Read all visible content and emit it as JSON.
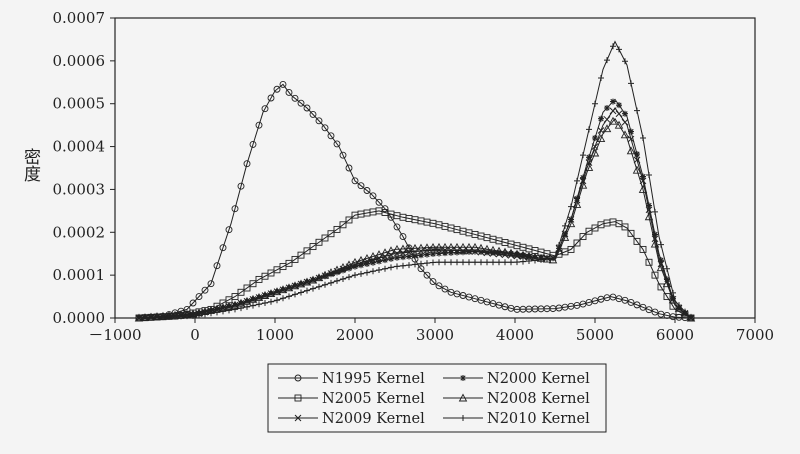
{
  "chart_data": {
    "type": "line",
    "title": "",
    "xlabel": "",
    "ylabel": "密度",
    "xlim": [
      -1000,
      7000
    ],
    "ylim": [
      0,
      0.0007
    ],
    "x_ticks": [
      -1000,
      0,
      1000,
      2000,
      3000,
      4000,
      5000,
      6000,
      7000
    ],
    "x_tick_labels": [
      "－1000",
      "0",
      "1000",
      "2000",
      "3000",
      "4000",
      "5000",
      "6000",
      "7000"
    ],
    "y_ticks": [
      0,
      0.0001,
      0.0002,
      0.0003,
      0.0004,
      0.0005,
      0.0006,
      0.0007
    ],
    "y_tick_labels": [
      "0.0000",
      "0.0001",
      "0.0002",
      "0.0003",
      "0.0004",
      "0.0005",
      "0.0006",
      "0.0007"
    ],
    "grid": false,
    "legend_position": "bottom",
    "colors": {
      "line": "#222222",
      "background": "#f4f4f4"
    },
    "series": [
      {
        "name": "N1995 Kernel",
        "marker": "circle",
        "points": [
          [
            -700,
            0.0
          ],
          [
            -400,
            4e-06
          ],
          [
            -100,
            2e-05
          ],
          [
            200,
            8e-05
          ],
          [
            450,
            0.00022
          ],
          [
            650,
            0.00036
          ],
          [
            850,
            0.00048
          ],
          [
            1000,
            0.00053
          ],
          [
            1100,
            0.000545
          ],
          [
            1200,
            0.00052
          ],
          [
            1400,
            0.00049
          ],
          [
            1600,
            0.00045
          ],
          [
            1800,
            0.0004
          ],
          [
            1900,
            0.00036
          ],
          [
            2000,
            0.00032
          ],
          [
            2200,
            0.00029
          ],
          [
            2400,
            0.00025
          ],
          [
            2600,
            0.00019
          ],
          [
            2800,
            0.00012
          ],
          [
            3000,
            8e-05
          ],
          [
            3200,
            6e-05
          ],
          [
            3500,
            4.5e-05
          ],
          [
            3800,
            3e-05
          ],
          [
            4000,
            2e-05
          ],
          [
            4500,
            2.2e-05
          ],
          [
            4800,
            3e-05
          ],
          [
            5000,
            4e-05
          ],
          [
            5200,
            5e-05
          ],
          [
            5400,
            4e-05
          ],
          [
            5600,
            2.5e-05
          ],
          [
            5800,
            1e-05
          ],
          [
            6000,
            2e-06
          ],
          [
            6200,
            0.0
          ]
        ]
      },
      {
        "name": "N2000 Kernel",
        "marker": "asterisk",
        "points": [
          [
            -700,
            0.0
          ],
          [
            0,
            8e-06
          ],
          [
            500,
            3e-05
          ],
          [
            1000,
            6e-05
          ],
          [
            1500,
            9e-05
          ],
          [
            2000,
            0.00012
          ],
          [
            2500,
            0.00014
          ],
          [
            3000,
            0.00015
          ],
          [
            3500,
            0.000155
          ],
          [
            4000,
            0.00015
          ],
          [
            4300,
            0.00014
          ],
          [
            4500,
            0.00014
          ],
          [
            4700,
            0.00023
          ],
          [
            4900,
            0.00036
          ],
          [
            5100,
            0.00048
          ],
          [
            5250,
            0.00051
          ],
          [
            5400,
            0.00047
          ],
          [
            5600,
            0.00033
          ],
          [
            5800,
            0.00015
          ],
          [
            6000,
            3e-05
          ],
          [
            6200,
            0.0
          ]
        ]
      },
      {
        "name": "N2005 Kernel",
        "marker": "square",
        "points": [
          [
            -700,
            0.0
          ],
          [
            -200,
            5e-06
          ],
          [
            200,
            2e-05
          ],
          [
            500,
            5e-05
          ],
          [
            800,
            9e-05
          ],
          [
            1200,
            0.00013
          ],
          [
            1500,
            0.00017
          ],
          [
            1800,
            0.00021
          ],
          [
            2000,
            0.00024
          ],
          [
            2300,
            0.00025
          ],
          [
            2600,
            0.000235
          ],
          [
            3000,
            0.00022
          ],
          [
            3400,
            0.0002
          ],
          [
            3800,
            0.00018
          ],
          [
            4200,
            0.00016
          ],
          [
            4500,
            0.000145
          ],
          [
            4700,
            0.00016
          ],
          [
            4900,
            0.0002
          ],
          [
            5100,
            0.00022
          ],
          [
            5250,
            0.000225
          ],
          [
            5400,
            0.00021
          ],
          [
            5600,
            0.00016
          ],
          [
            5800,
            8e-05
          ],
          [
            6000,
            2e-05
          ],
          [
            6200,
            0.0
          ]
        ]
      },
      {
        "name": "N2008 Kernel",
        "marker": "triangle",
        "points": [
          [
            -700,
            0.0
          ],
          [
            0,
            1e-05
          ],
          [
            500,
            3e-05
          ],
          [
            1000,
            6e-05
          ],
          [
            1500,
            9e-05
          ],
          [
            2000,
            0.00013
          ],
          [
            2500,
            0.00016
          ],
          [
            3000,
            0.000165
          ],
          [
            3500,
            0.000165
          ],
          [
            4000,
            0.00015
          ],
          [
            4300,
            0.00014
          ],
          [
            4500,
            0.000135
          ],
          [
            4700,
            0.00022
          ],
          [
            4900,
            0.00034
          ],
          [
            5100,
            0.00043
          ],
          [
            5250,
            0.000465
          ],
          [
            5400,
            0.00042
          ],
          [
            5600,
            0.0003
          ],
          [
            5800,
            0.00013
          ],
          [
            6000,
            3e-05
          ],
          [
            6200,
            0.0
          ]
        ]
      },
      {
        "name": "N2009 Kernel",
        "marker": "x",
        "points": [
          [
            -700,
            0.0
          ],
          [
            0,
            8e-06
          ],
          [
            500,
            3e-05
          ],
          [
            1000,
            6e-05
          ],
          [
            1500,
            9e-05
          ],
          [
            2000,
            0.000125
          ],
          [
            2500,
            0.00015
          ],
          [
            3000,
            0.00016
          ],
          [
            3500,
            0.000155
          ],
          [
            4000,
            0.000145
          ],
          [
            4300,
            0.00014
          ],
          [
            4500,
            0.00014
          ],
          [
            4700,
            0.00023
          ],
          [
            4900,
            0.00035
          ],
          [
            5100,
            0.00045
          ],
          [
            5250,
            0.00049
          ],
          [
            5400,
            0.00045
          ],
          [
            5600,
            0.00032
          ],
          [
            5800,
            0.00014
          ],
          [
            6000,
            3e-05
          ],
          [
            6200,
            0.0
          ]
        ]
      },
      {
        "name": "N2010 Kernel",
        "marker": "plus",
        "points": [
          [
            -700,
            0.0
          ],
          [
            0,
            5e-06
          ],
          [
            500,
            2e-05
          ],
          [
            1000,
            4e-05
          ],
          [
            1500,
            7e-05
          ],
          [
            2000,
            0.0001
          ],
          [
            2500,
            0.00012
          ],
          [
            3000,
            0.00013
          ],
          [
            3500,
            0.00013
          ],
          [
            4000,
            0.00013
          ],
          [
            4300,
            0.000135
          ],
          [
            4500,
            0.00014
          ],
          [
            4700,
            0.00026
          ],
          [
            4900,
            0.00042
          ],
          [
            5100,
            0.00058
          ],
          [
            5250,
            0.000645
          ],
          [
            5400,
            0.00059
          ],
          [
            5600,
            0.00042
          ],
          [
            5800,
            0.00019
          ],
          [
            6000,
            4e-05
          ],
          [
            6200,
            0.0
          ]
        ]
      }
    ]
  }
}
